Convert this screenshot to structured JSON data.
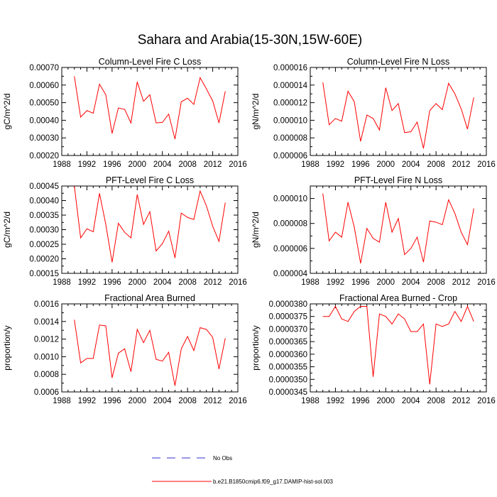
{
  "page_title": "Sahara and Arabia(15-30N,15W-60E)",
  "colors": {
    "series": "#ff0000",
    "no_obs": "#3333cc",
    "axis": "#000000"
  },
  "legend": [
    {
      "label": "No Obs",
      "color": "#3333cc",
      "style": "dashed"
    },
    {
      "label": "b.e21.B1850cmip6.f09_g17.DAMIP-hist-sol.003",
      "color": "#ff0000",
      "style": "solid"
    }
  ],
  "chart_data": [
    {
      "type": "line",
      "title": "Column-Level Fire C Loss",
      "ylabel": "gC/m^2/d",
      "xlim": [
        1988,
        2016
      ],
      "xticks": [
        1988,
        1992,
        1996,
        2000,
        2004,
        2008,
        2012,
        2016
      ],
      "xtick_labels": [
        "1988",
        "1992",
        "1996",
        "2000",
        "2004",
        "2008",
        "2012",
        "2016"
      ],
      "ylim": [
        0.0002,
        0.0007
      ],
      "yticks": [
        0.0002,
        0.0003,
        0.0004,
        0.0005,
        0.0006,
        0.0007
      ],
      "ytick_labels": [
        "0.00020",
        "0.00030",
        "0.00040",
        "0.00050",
        "0.00060",
        "0.00070"
      ],
      "x": [
        1990,
        1991,
        1992,
        1993,
        1994,
        1995,
        1996,
        1997,
        1998,
        1999,
        2000,
        2001,
        2002,
        2003,
        2004,
        2005,
        2006,
        2007,
        2008,
        2009,
        2010,
        2011,
        2012,
        2013,
        2014
      ],
      "series": [
        {
          "name": "b.e21.B1850cmip6.f09_g17.DAMIP-hist-sol.003",
          "values": [
            0.00065,
            0.000418,
            0.000455,
            0.00044,
            0.000605,
            0.000545,
            0.000325,
            0.00047,
            0.000462,
            0.000385,
            0.000618,
            0.000508,
            0.000545,
            0.000385,
            0.000388,
            0.000435,
            0.000293,
            0.000505,
            0.000525,
            0.00049,
            0.000642,
            0.000578,
            0.00051,
            0.000385,
            0.000565
          ]
        }
      ]
    },
    {
      "type": "line",
      "title": "Column-Level Fire N Loss",
      "ylabel": "gN/m^2/d",
      "xlim": [
        1988,
        2016
      ],
      "xticks": [
        1988,
        1992,
        1996,
        2000,
        2004,
        2008,
        2012,
        2016
      ],
      "xtick_labels": [
        "1988",
        "1992",
        "1996",
        "2000",
        "2004",
        "2008",
        "2012",
        "2016"
      ],
      "ylim": [
        6e-06,
        1.6e-05
      ],
      "yticks": [
        6e-06,
        8e-06,
        1e-05,
        1.2e-05,
        1.4e-05,
        1.6e-05
      ],
      "ytick_labels": [
        "0.000006",
        "0.000008",
        "0.000010",
        "0.000012",
        "0.000014",
        "0.000016"
      ],
      "x": [
        1990,
        1991,
        1992,
        1993,
        1994,
        1995,
        1996,
        1997,
        1998,
        1999,
        2000,
        2001,
        2002,
        2003,
        2004,
        2005,
        2006,
        2007,
        2008,
        2009,
        2010,
        2011,
        2012,
        2013,
        2014
      ],
      "series": [
        {
          "name": "b.e21.B1850cmip6.f09_g17.DAMIP-hist-sol.003",
          "values": [
            1.43e-05,
            9.5e-06,
            1.02e-05,
            9.9e-06,
            1.33e-05,
            1.21e-05,
            7.6e-06,
            1.06e-05,
            1.02e-05,
            8.9e-06,
            1.37e-05,
            1.11e-05,
            1.19e-05,
            8.6e-06,
            8.7e-06,
            9.8e-06,
            6.8e-06,
            1.11e-05,
            1.19e-05,
            1.12e-05,
            1.42e-05,
            1.3e-05,
            1.13e-05,
            9e-06,
            1.26e-05
          ]
        }
      ]
    },
    {
      "type": "line",
      "title": "PFT-Level Fire C Loss",
      "ylabel": "gC/m^2/d",
      "xlim": [
        1988,
        2016
      ],
      "xticks": [
        1988,
        1992,
        1996,
        2000,
        2004,
        2008,
        2012,
        2016
      ],
      "xtick_labels": [
        "1988",
        "1992",
        "1996",
        "2000",
        "2004",
        "2008",
        "2012",
        "2016"
      ],
      "ylim": [
        0.00015,
        0.00045
      ],
      "yticks": [
        0.00015,
        0.0002,
        0.00025,
        0.0003,
        0.00035,
        0.0004,
        0.00045
      ],
      "ytick_labels": [
        "0.00015",
        "0.00020",
        "0.00025",
        "0.00030",
        "0.00035",
        "0.00040",
        "0.00045"
      ],
      "x": [
        1990,
        1991,
        1992,
        1993,
        1994,
        1995,
        1996,
        1997,
        1998,
        1999,
        2000,
        2001,
        2002,
        2003,
        2004,
        2005,
        2006,
        2007,
        2008,
        2009,
        2010,
        2011,
        2012,
        2013,
        2014
      ],
      "series": [
        {
          "name": "b.e21.B1850cmip6.f09_g17.DAMIP-hist-sol.003",
          "values": [
            0.00045,
            0.000272,
            0.000303,
            0.000293,
            0.000425,
            0.000318,
            0.000188,
            0.000322,
            0.000291,
            0.000272,
            0.000421,
            0.000318,
            0.000362,
            0.000227,
            0.000252,
            0.000295,
            0.000203,
            0.000357,
            0.000342,
            0.000335,
            0.000433,
            0.000382,
            0.000312,
            0.00026,
            0.000393
          ]
        }
      ]
    },
    {
      "type": "line",
      "title": "PFT-Level Fire N Loss",
      "ylabel": "gN/m^2/d",
      "xlim": [
        1988,
        2016
      ],
      "xticks": [
        1988,
        1992,
        1996,
        2000,
        2004,
        2008,
        2012,
        2016
      ],
      "xtick_labels": [
        "1988",
        "1992",
        "1996",
        "2000",
        "2004",
        "2008",
        "2012",
        "2016"
      ],
      "ylim": [
        4e-06,
        1.1e-05
      ],
      "yticks": [
        4e-06,
        6e-06,
        8e-06,
        1e-05
      ],
      "ytick_labels": [
        "0.000004",
        "0.000006",
        "0.000008",
        "0.000010"
      ],
      "x": [
        1990,
        1991,
        1992,
        1993,
        1994,
        1995,
        1996,
        1997,
        1998,
        1999,
        2000,
        2001,
        2002,
        2003,
        2004,
        2005,
        2006,
        2007,
        2008,
        2009,
        2010,
        2011,
        2012,
        2013,
        2014
      ],
      "series": [
        {
          "name": "b.e21.B1850cmip6.f09_g17.DAMIP-hist-sol.003",
          "values": [
            1.04e-05,
            6.6e-06,
            7.3e-06,
            6.9e-06,
            9.7e-06,
            7.7e-06,
            4.8e-06,
            7.6e-06,
            6.8e-06,
            6.5e-06,
            9.7e-06,
            7.3e-06,
            8.4e-06,
            5.5e-06,
            6e-06,
            6.9e-06,
            4.9e-06,
            8.2e-06,
            8.1e-06,
            7.9e-06,
            9.9e-06,
            8.8e-06,
            7.3e-06,
            6.3e-06,
            9.2e-06
          ]
        }
      ]
    },
    {
      "type": "line",
      "title": "Fractional Area Burned",
      "ylabel": "proportion/y",
      "xlim": [
        1988,
        2016
      ],
      "xticks": [
        1988,
        1992,
        1996,
        2000,
        2004,
        2008,
        2012,
        2016
      ],
      "xtick_labels": [
        "1988",
        "1992",
        "1996",
        "2000",
        "2004",
        "2008",
        "2012",
        "2016"
      ],
      "ylim": [
        0.0006,
        0.0016
      ],
      "yticks": [
        0.0006,
        0.0008,
        0.001,
        0.0012,
        0.0014,
        0.0016
      ],
      "ytick_labels": [
        "0.0006",
        "0.0008",
        "0.0010",
        "0.0012",
        "0.0014",
        "0.0016"
      ],
      "x": [
        1990,
        1991,
        1992,
        1993,
        1994,
        1995,
        1996,
        1997,
        1998,
        1999,
        2000,
        2001,
        2002,
        2003,
        2004,
        2005,
        2006,
        2007,
        2008,
        2009,
        2010,
        2011,
        2012,
        2013,
        2014
      ],
      "series": [
        {
          "name": "b.e21.B1850cmip6.f09_g17.DAMIP-hist-sol.003",
          "values": [
            0.00142,
            0.00093,
            0.00098,
            0.00098,
            0.00136,
            0.00135,
            0.00076,
            0.00104,
            0.00109,
            0.00083,
            0.00131,
            0.00116,
            0.0013,
            0.00097,
            0.00095,
            0.00105,
            0.00067,
            0.00109,
            0.00123,
            0.00107,
            0.00133,
            0.00131,
            0.00122,
            0.00086,
            0.00121
          ]
        }
      ]
    },
    {
      "type": "line",
      "title": "Fractional Area Burned - Crop",
      "ylabel": "proportion/y",
      "xlim": [
        1988,
        2016
      ],
      "xticks": [
        1988,
        1992,
        1996,
        2000,
        2004,
        2008,
        2012,
        2016
      ],
      "xtick_labels": [
        "1988",
        "1992",
        "1996",
        "2000",
        "2004",
        "2008",
        "2012",
        "2016"
      ],
      "ylim": [
        3.45e-05,
        3.8e-05
      ],
      "yticks": [
        3.45e-05,
        3.5e-05,
        3.55e-05,
        3.6e-05,
        3.65e-05,
        3.7e-05,
        3.75e-05,
        3.8e-05
      ],
      "ytick_labels": [
        "0.0000345",
        "0.0000350",
        "0.0000355",
        "0.0000360",
        "0.0000365",
        "0.0000370",
        "0.0000375",
        "0.0000380"
      ],
      "x": [
        1990,
        1991,
        1992,
        1993,
        1994,
        1995,
        1996,
        1997,
        1998,
        1999,
        2000,
        2001,
        2002,
        2003,
        2004,
        2005,
        2006,
        2007,
        2008,
        2009,
        2010,
        2011,
        2012,
        2013,
        2014
      ],
      "series": [
        {
          "name": "b.e21.B1850cmip6.f09_g17.DAMIP-hist-sol.003",
          "values": [
            3.75e-05,
            3.75e-05,
            3.79e-05,
            3.74e-05,
            3.73e-05,
            3.77e-05,
            3.79e-05,
            3.79e-05,
            3.51e-05,
            3.76e-05,
            3.75e-05,
            3.72e-05,
            3.76e-05,
            3.74e-05,
            3.69e-05,
            3.69e-05,
            3.72e-05,
            3.48e-05,
            3.72e-05,
            3.71e-05,
            3.72e-05,
            3.77e-05,
            3.73e-05,
            3.79e-05,
            3.73e-05
          ]
        }
      ]
    }
  ]
}
